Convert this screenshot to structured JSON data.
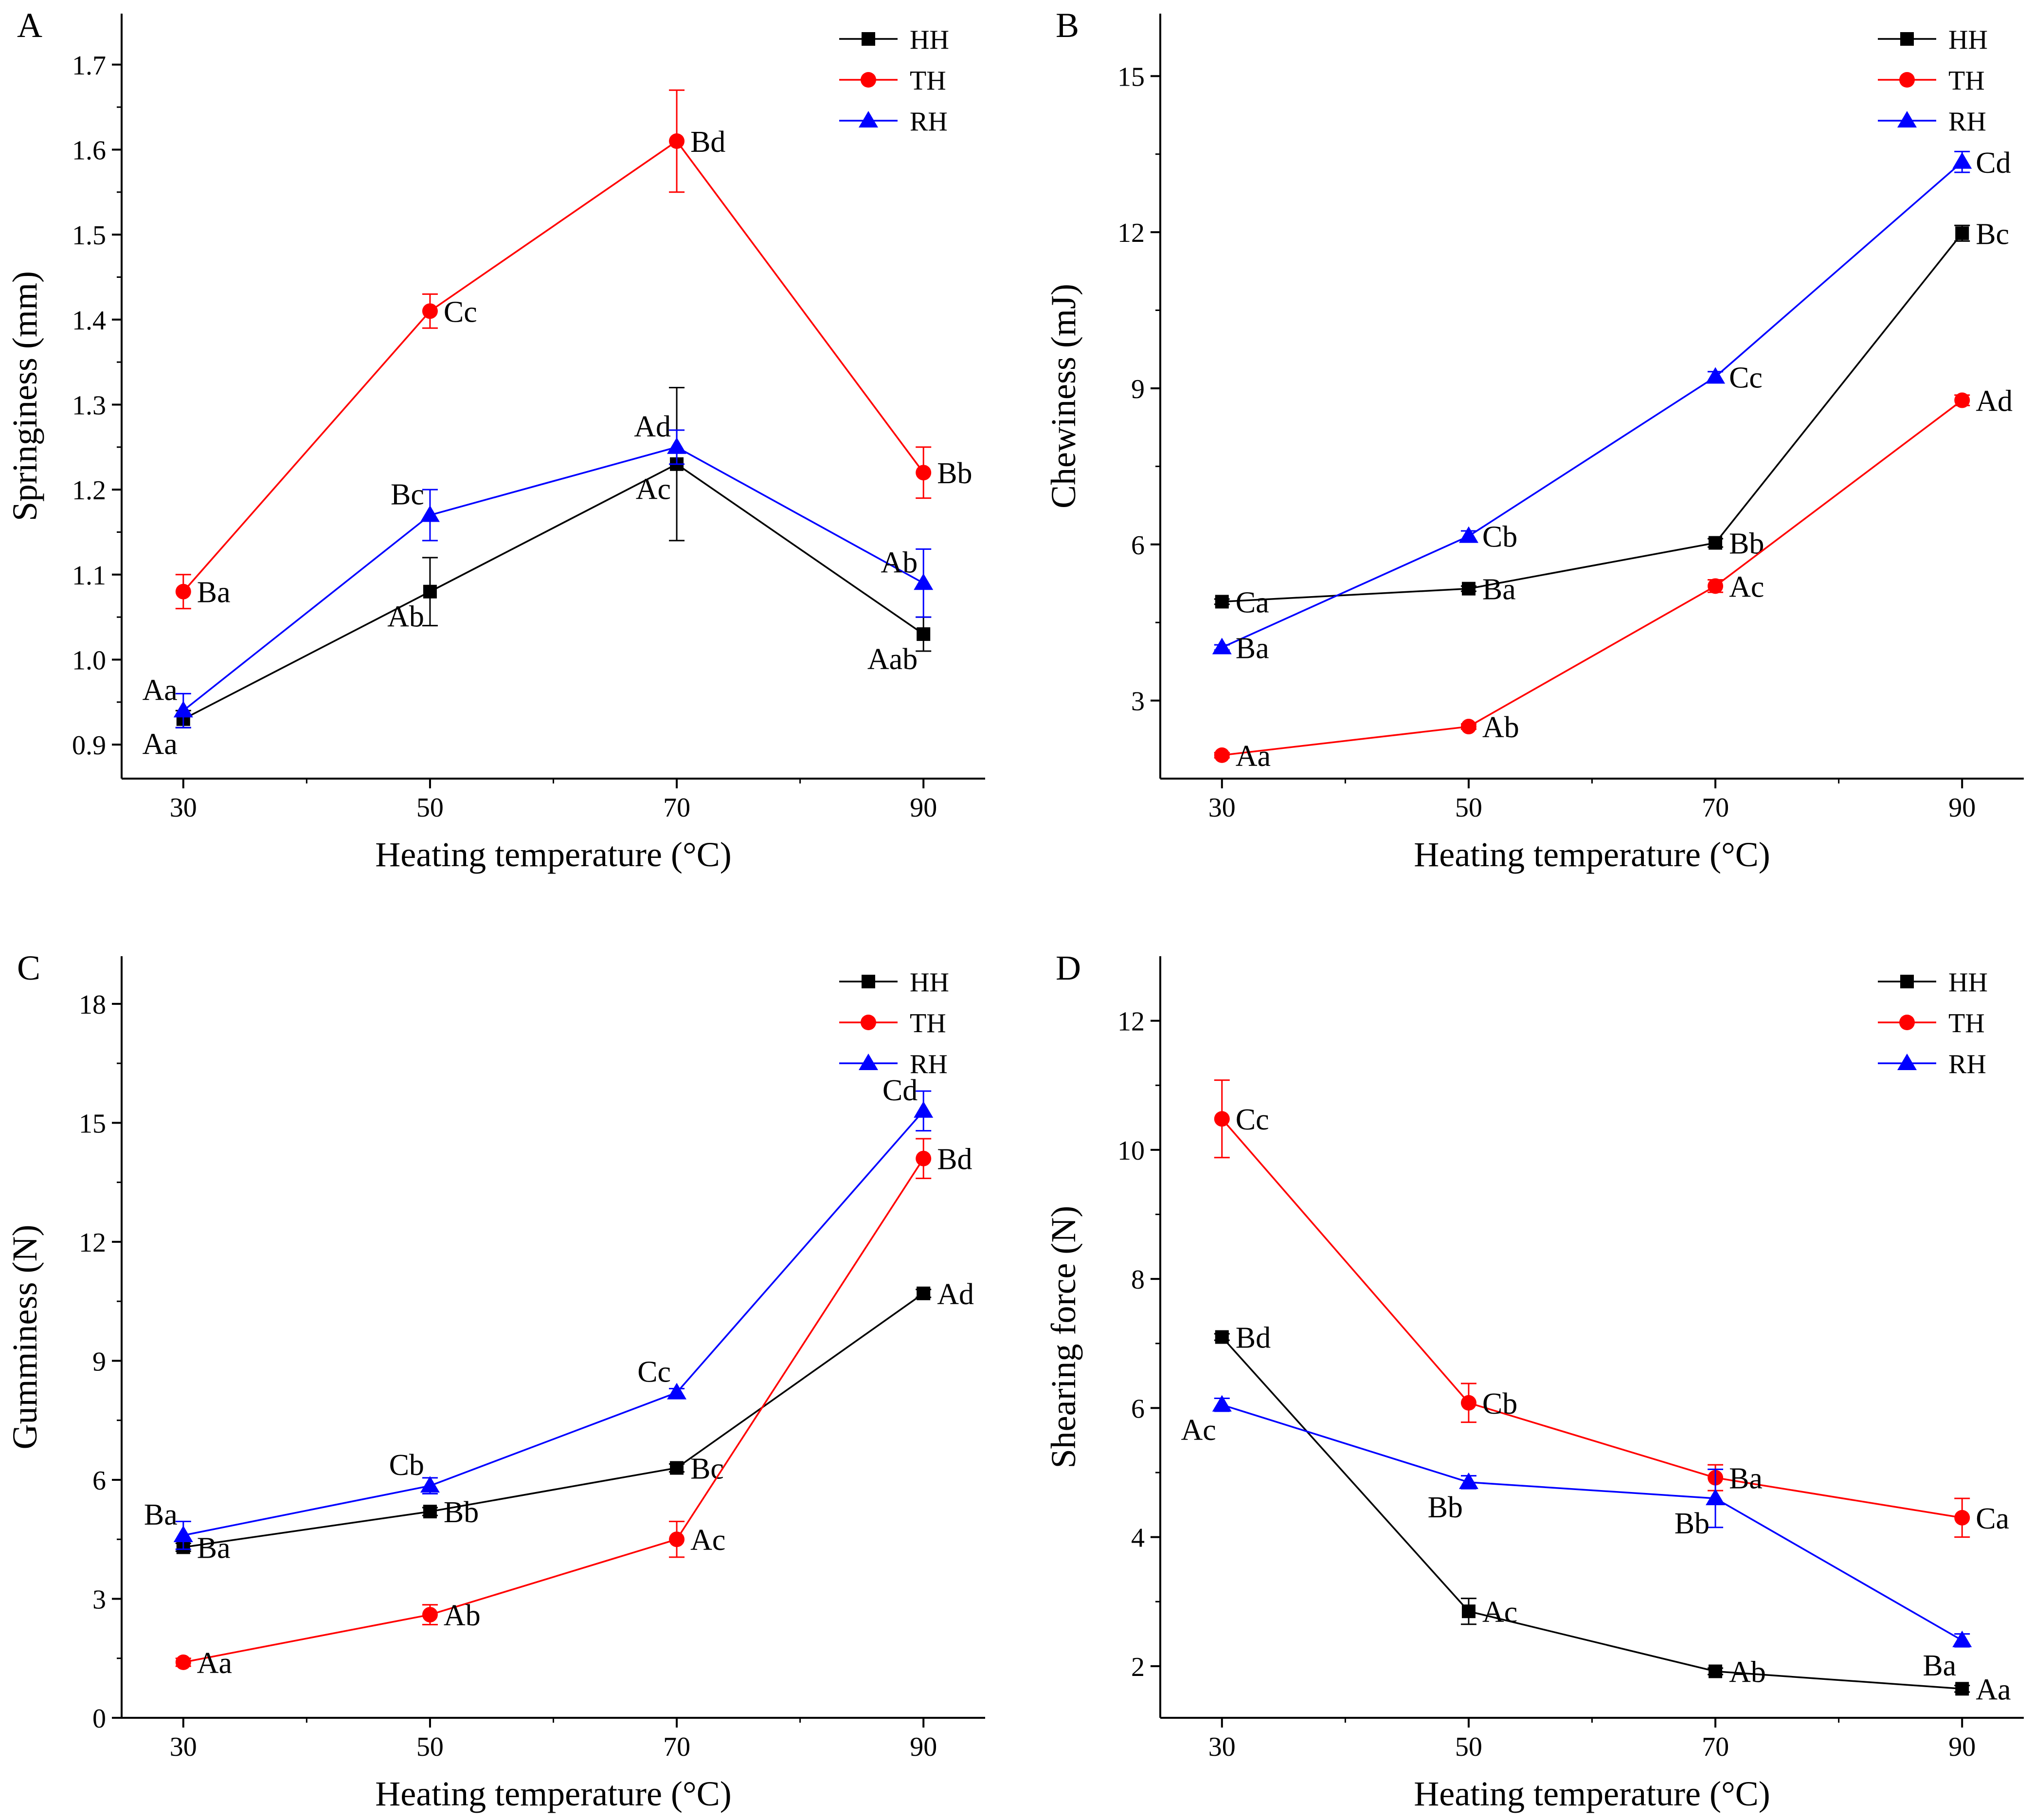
{
  "figure": {
    "panels": [
      "A",
      "B",
      "C",
      "D"
    ]
  },
  "chart_data": [
    {
      "panel": "A",
      "type": "line",
      "title": "",
      "xlabel": "Heating temperature (°C)",
      "ylabel": "Springiness (mm)",
      "x": [
        30,
        50,
        70,
        90
      ],
      "xticks": [
        "30",
        "50",
        "70",
        "90"
      ],
      "xlim": [
        25,
        95
      ],
      "ylim": [
        0.86,
        1.76
      ],
      "yticks": [
        "0.9",
        "1.0",
        "1.1",
        "1.2",
        "1.3",
        "1.4",
        "1.5",
        "1.6",
        "1.7"
      ],
      "ytick_values": [
        0.9,
        1.0,
        1.1,
        1.2,
        1.3,
        1.4,
        1.5,
        1.6,
        1.7
      ],
      "legend": "top-right",
      "series": [
        {
          "name": "HH",
          "color": "#000000",
          "marker": "square",
          "values": [
            0.93,
            1.08,
            1.23,
            1.03
          ],
          "errors": [
            0.01,
            0.04,
            0.09,
            0.02
          ],
          "labels": [
            "Aa",
            "Ab",
            "Ac",
            "Aab"
          ],
          "label_pos": [
            "bl",
            "bl",
            "bl",
            "bl"
          ]
        },
        {
          "name": "TH",
          "color": "#ff0000",
          "marker": "circle",
          "values": [
            1.08,
            1.41,
            1.61,
            1.22
          ],
          "errors": [
            0.02,
            0.02,
            0.06,
            0.03
          ],
          "labels": [
            "Ba",
            "Cc",
            "Bd",
            "Bb"
          ],
          "label_pos": [
            "r",
            "r",
            "r",
            "r"
          ]
        },
        {
          "name": "RH",
          "color": "#0000ff",
          "marker": "triangle",
          "values": [
            0.94,
            1.17,
            1.25,
            1.09
          ],
          "errors": [
            0.02,
            0.03,
            0.02,
            0.04
          ],
          "labels": [
            "Aa",
            "Bc",
            "Ad",
            "Ab"
          ],
          "label_pos": [
            "tl",
            "tl",
            "tl",
            "tl"
          ]
        }
      ]
    },
    {
      "panel": "B",
      "type": "line",
      "title": "",
      "xlabel": "Heating temperature (°C)",
      "ylabel": "Chewiness (mJ)",
      "x": [
        30,
        50,
        70,
        90
      ],
      "xticks": [
        "30",
        "50",
        "70",
        "90"
      ],
      "xlim": [
        25,
        95
      ],
      "ylim": [
        1.5,
        16.2
      ],
      "yticks": [
        "3",
        "6",
        "9",
        "12",
        "15"
      ],
      "ytick_values": [
        3,
        6,
        9,
        12,
        15
      ],
      "legend": "top-right",
      "series": [
        {
          "name": "HH",
          "color": "#000000",
          "marker": "square",
          "values": [
            4.9,
            5.15,
            6.03,
            11.98
          ],
          "errors": [
            0.05,
            0.05,
            0.08,
            0.15
          ],
          "labels": [
            "Ca",
            "Ba",
            "Bb",
            "Bc"
          ],
          "label_pos": [
            "r",
            "r",
            "r",
            "r"
          ]
        },
        {
          "name": "TH",
          "color": "#ff0000",
          "marker": "circle",
          "values": [
            1.95,
            2.5,
            5.2,
            8.77
          ],
          "errors": [
            0.05,
            0.05,
            0.12,
            0.1
          ],
          "labels": [
            "Aa",
            "Ab",
            "Ac",
            "Ad"
          ],
          "label_pos": [
            "r",
            "r",
            "r",
            "r"
          ]
        },
        {
          "name": "RH",
          "color": "#0000ff",
          "marker": "triangle",
          "values": [
            4.02,
            6.16,
            9.22,
            13.35
          ],
          "errors": [
            0.05,
            0.1,
            0.1,
            0.2
          ],
          "labels": [
            "Ba",
            "Cb",
            "Cc",
            "Cd"
          ],
          "label_pos": [
            "r",
            "r",
            "r",
            "r"
          ]
        }
      ]
    },
    {
      "panel": "C",
      "type": "line",
      "title": "",
      "xlabel": "Heating temperature (°C)",
      "ylabel": "Gumminess (N)",
      "x": [
        30,
        50,
        70,
        90
      ],
      "xticks": [
        "30",
        "50",
        "70",
        "90"
      ],
      "xlim": [
        25,
        95
      ],
      "ylim": [
        0,
        19.2
      ],
      "yticks": [
        "0",
        "3",
        "6",
        "9",
        "12",
        "15",
        "18"
      ],
      "ytick_values": [
        0,
        3,
        6,
        9,
        12,
        15,
        18
      ],
      "legend": "top-right",
      "series": [
        {
          "name": "HH",
          "color": "#000000",
          "marker": "square",
          "values": [
            4.3,
            5.2,
            6.3,
            10.7
          ],
          "errors": [
            0.1,
            0.1,
            0.1,
            0.1
          ],
          "labels": [
            "Ba",
            "Bb",
            "Bc",
            "Ad"
          ],
          "label_pos": [
            "r",
            "r",
            "r",
            "r"
          ]
        },
        {
          "name": "TH",
          "color": "#ff0000",
          "marker": "circle",
          "values": [
            1.4,
            2.6,
            4.5,
            14.1
          ],
          "errors": [
            0.1,
            0.25,
            0.45,
            0.5
          ],
          "labels": [
            "Aa",
            "Ab",
            "Ac",
            "Bd"
          ],
          "label_pos": [
            "r",
            "r",
            "r",
            "r"
          ]
        },
        {
          "name": "RH",
          "color": "#0000ff",
          "marker": "triangle",
          "values": [
            4.6,
            5.85,
            8.2,
            15.3
          ],
          "errors": [
            0.35,
            0.2,
            0.1,
            0.5
          ],
          "labels": [
            "Ba",
            "Cb",
            "Cc",
            "Cd"
          ],
          "label_pos": [
            "tl",
            "tl",
            "tl",
            "tl"
          ]
        }
      ]
    },
    {
      "panel": "D",
      "type": "line",
      "title": "",
      "xlabel": "Heating temperature (°C)",
      "ylabel": "Shearing force (N)",
      "x": [
        30,
        50,
        70,
        90
      ],
      "xticks": [
        "30",
        "50",
        "70",
        "90"
      ],
      "xlim": [
        25,
        95
      ],
      "ylim": [
        1.2,
        13.0
      ],
      "yticks": [
        "2",
        "4",
        "6",
        "8",
        "10",
        "12"
      ],
      "ytick_values": [
        2,
        4,
        6,
        8,
        10,
        12
      ],
      "legend": "top-right",
      "series": [
        {
          "name": "HH",
          "color": "#000000",
          "marker": "square",
          "values": [
            7.1,
            2.85,
            1.92,
            1.65
          ],
          "errors": [
            0.05,
            0.2,
            0.05,
            0.05
          ],
          "labels": [
            "Bd",
            "Ac",
            "Ab",
            "Aa"
          ],
          "label_pos": [
            "r",
            "r",
            "r",
            "r"
          ]
        },
        {
          "name": "TH",
          "color": "#ff0000",
          "marker": "circle",
          "values": [
            10.48,
            6.08,
            4.92,
            4.3
          ],
          "errors": [
            0.6,
            0.3,
            0.2,
            0.3
          ],
          "labels": [
            "Cc",
            "Cb",
            "Ba",
            "Ca"
          ],
          "label_pos": [
            "r",
            "r",
            "r",
            "r"
          ]
        },
        {
          "name": "RH",
          "color": "#0000ff",
          "marker": "triangle",
          "values": [
            6.05,
            4.85,
            4.6,
            2.4
          ],
          "errors": [
            0.1,
            0.1,
            0.45,
            0.1
          ],
          "labels": [
            "Ac",
            "Bb",
            "Bb",
            "Ba"
          ],
          "label_pos": [
            "bl",
            "bl",
            "bl",
            "bl"
          ]
        }
      ]
    }
  ]
}
